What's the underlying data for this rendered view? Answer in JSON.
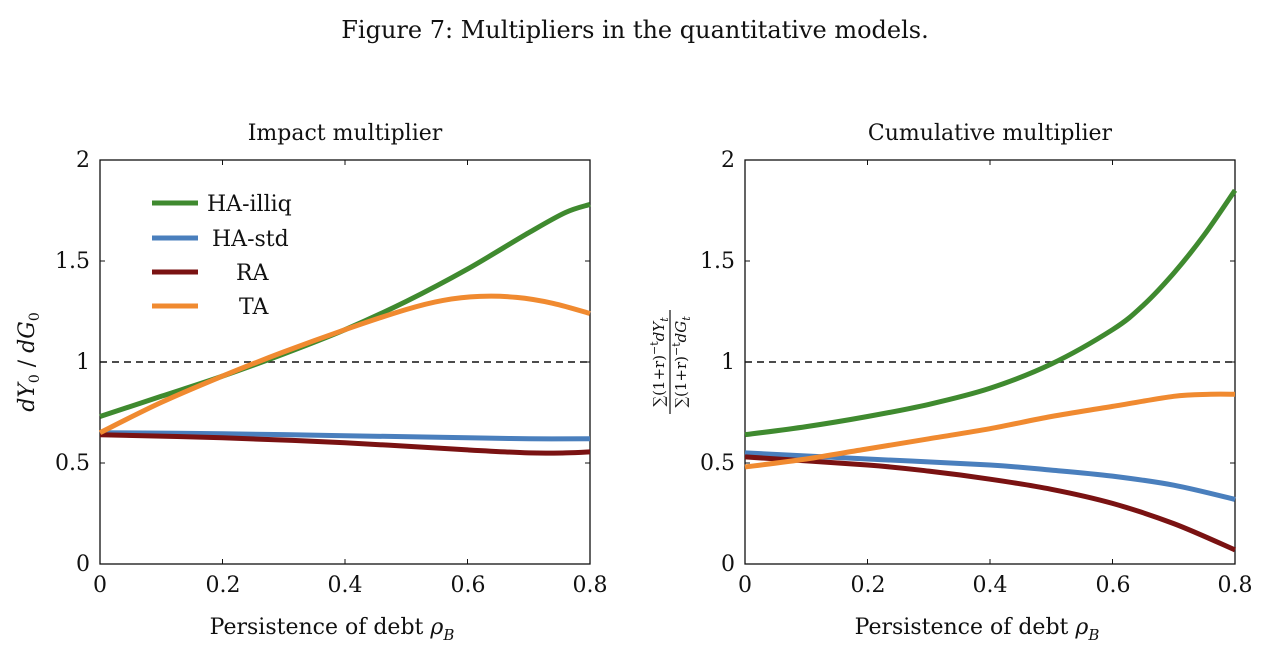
{
  "figure": {
    "caption": "Figure 7: Multipliers in the quantitative models."
  },
  "colors": {
    "HA-illiq": "#3f8a2f",
    "HA-std": "#4a7fbd",
    "RA": "#7a1212",
    "TA": "#f08a30",
    "reference": "#111111"
  },
  "chart_data": [
    {
      "type": "line",
      "title": "Impact multiplier",
      "xlabel": "Persistence of debt ρ_B",
      "ylabel": "dY_0 / dG_0",
      "xlim": [
        0,
        0.8
      ],
      "ylim": [
        0,
        2
      ],
      "xticks": [
        "0",
        "0.2",
        "0.4",
        "0.6",
        "0.8"
      ],
      "yticks": [
        "0",
        "0.5",
        "1",
        "1.5",
        "2"
      ],
      "grid": false,
      "legend": "top-left",
      "reference_line": {
        "y": 1,
        "style": "dashed"
      },
      "series": [
        {
          "name": "HA-illiq",
          "x": [
            0,
            0.1,
            0.2,
            0.3,
            0.4,
            0.5,
            0.6,
            0.7,
            0.76,
            0.8
          ],
          "y": [
            0.73,
            0.83,
            0.93,
            1.04,
            1.16,
            1.3,
            1.46,
            1.64,
            1.74,
            1.78
          ]
        },
        {
          "name": "HA-std",
          "x": [
            0,
            0.2,
            0.4,
            0.6,
            0.7,
            0.8
          ],
          "y": [
            0.65,
            0.645,
            0.635,
            0.625,
            0.62,
            0.62
          ]
        },
        {
          "name": "RA",
          "x": [
            0,
            0.2,
            0.4,
            0.6,
            0.7,
            0.76,
            0.8
          ],
          "y": [
            0.64,
            0.625,
            0.6,
            0.565,
            0.55,
            0.55,
            0.555
          ]
        },
        {
          "name": "TA",
          "x": [
            0,
            0.1,
            0.2,
            0.3,
            0.4,
            0.5,
            0.56,
            0.62,
            0.68,
            0.74,
            0.8
          ],
          "y": [
            0.65,
            0.8,
            0.93,
            1.05,
            1.16,
            1.26,
            1.305,
            1.325,
            1.32,
            1.29,
            1.24
          ]
        }
      ]
    },
    {
      "type": "line",
      "title": "Cumulative multiplier",
      "xlabel": "Persistence of debt ρ_B",
      "ylabel": "∑(1+r)^{-t} dY_t / ∑(1+r)^{-t} dG_t",
      "xlim": [
        0,
        0.8
      ],
      "ylim": [
        0,
        2
      ],
      "xticks": [
        "0",
        "0.2",
        "0.4",
        "0.6",
        "0.8"
      ],
      "yticks": [
        "0",
        "0.5",
        "1",
        "1.5",
        "2"
      ],
      "grid": false,
      "reference_line": {
        "y": 1,
        "style": "dashed"
      },
      "series": [
        {
          "name": "HA-illiq",
          "x": [
            0,
            0.1,
            0.2,
            0.3,
            0.4,
            0.5,
            0.6,
            0.65,
            0.7,
            0.75,
            0.8
          ],
          "y": [
            0.64,
            0.68,
            0.73,
            0.79,
            0.87,
            0.99,
            1.16,
            1.28,
            1.44,
            1.63,
            1.85
          ]
        },
        {
          "name": "HA-std",
          "x": [
            0,
            0.2,
            0.4,
            0.5,
            0.6,
            0.7,
            0.8
          ],
          "y": [
            0.55,
            0.52,
            0.49,
            0.465,
            0.435,
            0.39,
            0.32
          ]
        },
        {
          "name": "RA",
          "x": [
            0,
            0.2,
            0.3,
            0.4,
            0.5,
            0.6,
            0.7,
            0.8
          ],
          "y": [
            0.53,
            0.49,
            0.46,
            0.42,
            0.37,
            0.3,
            0.2,
            0.07
          ]
        },
        {
          "name": "TA",
          "x": [
            0,
            0.1,
            0.2,
            0.3,
            0.4,
            0.5,
            0.6,
            0.7,
            0.76,
            0.8
          ],
          "y": [
            0.48,
            0.52,
            0.57,
            0.62,
            0.67,
            0.73,
            0.78,
            0.83,
            0.84,
            0.84
          ]
        }
      ]
    }
  ]
}
